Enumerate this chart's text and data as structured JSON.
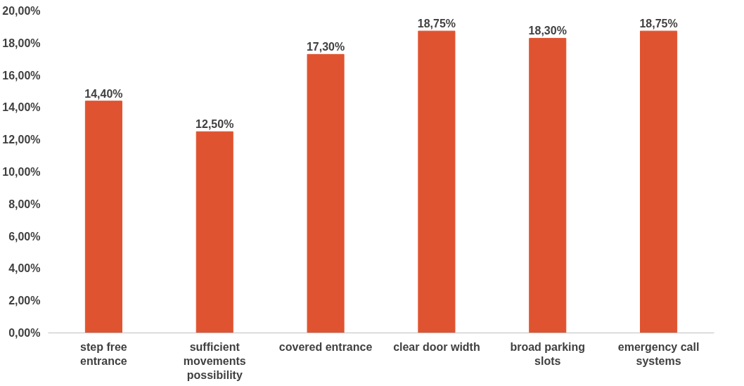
{
  "chart_data": {
    "type": "bar",
    "categories": [
      "step free entrance",
      "sufficient movements possibility",
      "covered entrance",
      "clear door width",
      "broad parking slots",
      "emergency call systems"
    ],
    "values": [
      14.4,
      12.5,
      17.3,
      18.75,
      18.3,
      18.75
    ],
    "color": "#e05330",
    "value_labels": [
      "14,40%",
      "12,50%",
      "17,30%",
      "18,75%",
      "18,30%",
      "18,75%"
    ],
    "ylim": [
      0,
      20
    ],
    "yticks": [
      {
        "value": 0,
        "label": "0,00%"
      },
      {
        "value": 2,
        "label": "2,00%"
      },
      {
        "value": 4,
        "label": "4,00%"
      },
      {
        "value": 6,
        "label": "6,00%"
      },
      {
        "value": 8,
        "label": "8,00%"
      },
      {
        "value": 10,
        "label": "10,00%"
      },
      {
        "value": 12,
        "label": "12,00%"
      },
      {
        "value": 14,
        "label": "14,00%"
      },
      {
        "value": 16,
        "label": "16,00%"
      },
      {
        "value": 18,
        "label": "18,00%"
      },
      {
        "value": 20,
        "label": "20,00%"
      }
    ],
    "grid": false
  }
}
